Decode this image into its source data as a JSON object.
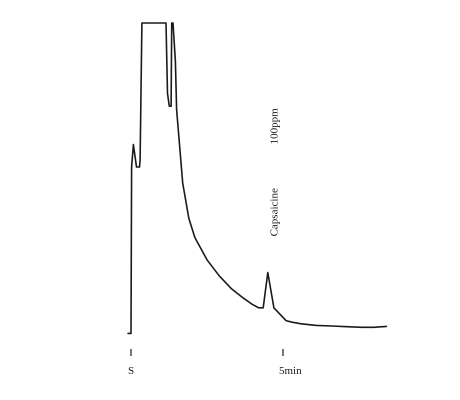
{
  "chart_data": {
    "type": "line",
    "title": "",
    "xlabel": "",
    "ylabel": "",
    "x_unit": "min",
    "xlim": [
      -0.1,
      8.4
    ],
    "ylim": [
      0,
      100
    ],
    "ticks": [
      {
        "x": 0,
        "label": "S"
      },
      {
        "x": 5,
        "label": "5min"
      }
    ],
    "annotations": [
      {
        "text": "Capsaicine",
        "x": 4.95,
        "y": 33
      },
      {
        "text": "100ppm",
        "x": 4.95,
        "y": 33
      }
    ],
    "series": [
      {
        "x": [
          -0.1,
          0.0,
          0.02,
          0.08,
          0.18,
          0.28,
          0.3,
          0.36,
          1.15,
          1.2,
          1.26,
          1.32,
          1.34,
          1.38,
          1.46,
          1.5,
          1.7,
          1.9,
          2.1,
          2.5,
          2.9,
          3.3,
          3.7,
          4.0,
          4.2,
          4.35,
          4.5,
          4.7,
          5.1,
          5.3,
          5.6,
          6.1,
          6.6,
          7.1,
          7.6,
          8.0,
          8.4
        ],
        "y": [
          3,
          3,
          55,
          62,
          55,
          55,
          57,
          100,
          100,
          78,
          74,
          74,
          100,
          100,
          88,
          73,
          50,
          39,
          33,
          26,
          21,
          17,
          14,
          12,
          11,
          11,
          22,
          11,
          7,
          6.5,
          6,
          5.5,
          5.3,
          5.1,
          4.9,
          4.9,
          5.2
        ]
      }
    ]
  }
}
